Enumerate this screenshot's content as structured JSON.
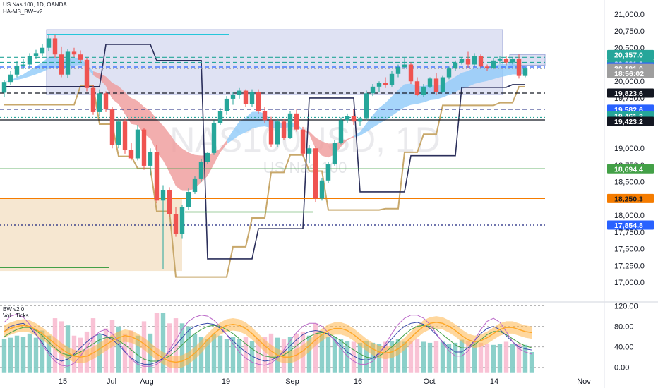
{
  "header": {
    "symbol_line": "US Nas 100, 1D, OANDA",
    "indicator_line": "HA-MS_BW+v2"
  },
  "sub_header": {
    "line1": "BW v2.0",
    "line2": "Vol · Ticks"
  },
  "watermark": {
    "big": "NAS100USD, 1D",
    "small": "US Nas 100"
  },
  "colors": {
    "up": "#26a69a",
    "down": "#ef5350",
    "ribbon_blue": "#90caf9",
    "ribbon_red": "#ef9a9a",
    "tan": "#c8a86b",
    "navy": "#2a2e5a",
    "box_blue": "#c5cae9",
    "box_tan": "#f3dfc2",
    "green_line": "#43a047",
    "orange_line": "#f57c00"
  },
  "chart_data": [
    {
      "type": "candlestick",
      "title": "US Nas 100, 1D, OANDA",
      "y_axis_ticks": [
        17000,
        17250,
        17500,
        17750,
        18000,
        18250,
        18500,
        18750,
        19000,
        19250,
        19500,
        19750,
        20000,
        20250,
        20500,
        20750,
        21000
      ],
      "y_tick_labels": [
        "17,000.0",
        "17,250.0",
        "17,500.0",
        "17,750.0",
        "18,000.0",
        "",
        "18,500.0",
        "18,750.0",
        "19,000.0",
        "",
        "",
        "19,750.0",
        "20,000.0",
        "",
        "20,500.0",
        "20,750.0",
        "21,000.0"
      ],
      "ylim": [
        16960,
        21150
      ],
      "x_tick_labels": [
        "15",
        "Jul",
        "Aug",
        "19",
        "Sep",
        "16",
        "Oct",
        "14",
        "Nov"
      ],
      "bars": [
        [
          19830,
          20020,
          19770,
          19990
        ],
        [
          19990,
          20150,
          19940,
          20100
        ],
        [
          20100,
          20300,
          20060,
          20230
        ],
        [
          20230,
          20330,
          20180,
          20250
        ],
        [
          20250,
          20420,
          20200,
          20380
        ],
        [
          20380,
          20470,
          20330,
          20420
        ],
        [
          20420,
          20560,
          20380,
          20500
        ],
        [
          20500,
          20690,
          20450,
          20640
        ],
        [
          20640,
          20700,
          20350,
          20400
        ],
        [
          20400,
          20520,
          20060,
          20100
        ],
        [
          20100,
          20480,
          20050,
          20440
        ],
        [
          20440,
          20500,
          20360,
          20400
        ],
        [
          20400,
          20460,
          20280,
          20320
        ],
        [
          20320,
          20350,
          19850,
          19900
        ],
        [
          19900,
          19940,
          19500,
          19540
        ],
        [
          19540,
          19880,
          19480,
          19820
        ],
        [
          19820,
          19850,
          19540,
          19580
        ],
        [
          19580,
          19620,
          19000,
          19050
        ],
        [
          19050,
          19450,
          19000,
          19400
        ],
        [
          19400,
          19450,
          18920,
          18980
        ],
        [
          18980,
          19080,
          18820,
          18850
        ],
        [
          18850,
          19350,
          18820,
          19280
        ],
        [
          19280,
          19300,
          18680,
          18740
        ],
        [
          18740,
          19000,
          18600,
          18940
        ],
        [
          18940,
          19050,
          18180,
          18220
        ],
        [
          18220,
          18450,
          17200,
          18380
        ],
        [
          18380,
          18420,
          17980,
          18020
        ],
        [
          18020,
          18120,
          17680,
          17720
        ],
        [
          17720,
          18160,
          17650,
          18120
        ],
        [
          18120,
          18400,
          18080,
          18350
        ],
        [
          18350,
          18580,
          18320,
          18540
        ],
        [
          18540,
          18840,
          18500,
          18800
        ],
        [
          18800,
          18950,
          18760,
          18930
        ],
        [
          18930,
          19420,
          18900,
          19380
        ],
        [
          19380,
          19600,
          19350,
          19560
        ],
        [
          19560,
          19780,
          19500,
          19740
        ],
        [
          19740,
          19840,
          19650,
          19800
        ],
        [
          19800,
          19900,
          19740,
          19860
        ],
        [
          19860,
          19880,
          19620,
          19660
        ],
        [
          19660,
          19880,
          19620,
          19840
        ],
        [
          19840,
          19880,
          19520,
          19560
        ],
        [
          19560,
          19620,
          19380,
          19420
        ],
        [
          19420,
          19470,
          19020,
          19060
        ],
        [
          19060,
          19450,
          19020,
          19400
        ],
        [
          19400,
          19440,
          19120,
          19160
        ],
        [
          19160,
          19560,
          19140,
          19520
        ],
        [
          19520,
          19580,
          19250,
          19280
        ],
        [
          19280,
          19320,
          18880,
          18920
        ],
        [
          18920,
          19050,
          18780,
          19000
        ],
        [
          19000,
          19030,
          18200,
          18250
        ],
        [
          18250,
          18560,
          18220,
          18520
        ],
        [
          18520,
          18800,
          18480,
          18760
        ],
        [
          18760,
          19120,
          18740,
          19080
        ],
        [
          19080,
          19460,
          19060,
          19420
        ],
        [
          19420,
          19520,
          19380,
          19480
        ],
        [
          19480,
          19580,
          19350,
          19400
        ],
        [
          19400,
          19460,
          19330,
          19450
        ],
        [
          19450,
          19860,
          19420,
          19820
        ],
        [
          19820,
          19960,
          19780,
          19920
        ],
        [
          19920,
          20000,
          19840,
          19980
        ],
        [
          19980,
          20060,
          19900,
          19950
        ],
        [
          19950,
          20150,
          19920,
          20110
        ],
        [
          20110,
          20250,
          20060,
          20210
        ],
        [
          20210,
          20350,
          20180,
          20250
        ],
        [
          20250,
          20280,
          19960,
          20000
        ],
        [
          20000,
          20060,
          19780,
          19800
        ],
        [
          19800,
          19960,
          19760,
          19920
        ],
        [
          19920,
          20060,
          19900,
          20040
        ],
        [
          20040,
          20120,
          19800,
          19840
        ],
        [
          19840,
          20080,
          19820,
          20060
        ],
        [
          20060,
          20220,
          20030,
          20190
        ],
        [
          20190,
          20310,
          20160,
          20280
        ],
        [
          20280,
          20360,
          20250,
          20330
        ],
        [
          20330,
          20440,
          20200,
          20250
        ],
        [
          20250,
          20420,
          20220,
          20380
        ],
        [
          20380,
          20400,
          20200,
          20220
        ],
        [
          20220,
          20250,
          20160,
          20200
        ],
        [
          20200,
          20350,
          20180,
          20310
        ],
        [
          20310,
          20380,
          20260,
          20340
        ],
        [
          20340,
          20380,
          20240,
          20280
        ],
        [
          20280,
          20360,
          20250,
          20330
        ],
        [
          20330,
          20400,
          20040,
          20080
        ],
        [
          20080,
          20220,
          20060,
          20191
        ]
      ],
      "price_badges": [
        {
          "value": "20,357.0",
          "bg": "#26a69a",
          "fg": "#ffffff"
        },
        {
          "value": "20,281.3",
          "bg": "#26a69a",
          "fg": "#ffffff"
        },
        {
          "value": "20,212.7",
          "bg": "#2962ff",
          "fg": "#ffffff"
        },
        {
          "value": "20,191.0",
          "bg": "#9e9e9e",
          "fg": "#ffffff"
        },
        {
          "value": "18:56:02",
          "bg": "#9e9e9e",
          "fg": "#ffffff"
        },
        {
          "value": "19,823.6",
          "bg": "#131722",
          "fg": "#ffffff"
        },
        {
          "value": "19,582.6",
          "bg": "#2962ff",
          "fg": "#ffffff"
        },
        {
          "value": "19,461.2",
          "bg": "#26a69a",
          "fg": "#ffffff"
        },
        {
          "value": "19,423.2",
          "bg": "#131722",
          "fg": "#ffffff"
        },
        {
          "value": "18,694.4",
          "bg": "#43a047",
          "fg": "#ffffff"
        },
        {
          "value": "18,250.3",
          "bg": "#f57c00",
          "fg": "#131722"
        },
        {
          "value": "17,854.8",
          "bg": "#2962ff",
          "fg": "#ffffff"
        }
      ],
      "levels": [
        {
          "value": 20357.0,
          "color": "#26a69a",
          "style": "dash"
        },
        {
          "value": 20281.3,
          "color": "#26a69a",
          "style": "dash"
        },
        {
          "value": 20212.7,
          "color": "#2962ff",
          "style": "dash"
        },
        {
          "value": 20191.0,
          "color": "#9e9e9e",
          "style": "dot"
        },
        {
          "value": 19823.6,
          "color": "#131722",
          "style": "dash"
        },
        {
          "value": 19582.6,
          "color": "#1a237e",
          "style": "dash"
        },
        {
          "value": 19461.2,
          "color": "#26a69a",
          "style": "dot"
        },
        {
          "value": 19423.2,
          "color": "#131722",
          "style": "solid"
        },
        {
          "value": 18694.4,
          "color": "#43a047",
          "style": "solid"
        },
        {
          "value": 18250.3,
          "color": "#f57c00",
          "style": "solid"
        },
        {
          "value": 17854.8,
          "color": "#1a237e",
          "style": "dot"
        }
      ]
    },
    {
      "type": "oscillator",
      "title": "BW v2.0",
      "y_axis_ticks": [
        0,
        40,
        80,
        120
      ],
      "y_tick_labels": [
        "0.00",
        "40.00",
        "80.00",
        "120.00"
      ],
      "ylim": [
        -10,
        125
      ],
      "volume": [
        55,
        58,
        62,
        60,
        66,
        58,
        72,
        62,
        96,
        90,
        82,
        62,
        58,
        70,
        96,
        66,
        76,
        92,
        80,
        66,
        72,
        62,
        90,
        66,
        106,
        106,
        86,
        96,
        86,
        80,
        66,
        60,
        56,
        66,
        62,
        56,
        60,
        56,
        60,
        52,
        56,
        60,
        66,
        58,
        56,
        60,
        66,
        70,
        62,
        86,
        66,
        60,
        60,
        56,
        52,
        50,
        48,
        52,
        48,
        46,
        50,
        52,
        56,
        50,
        52,
        56,
        50,
        48,
        52,
        50,
        46,
        48,
        54,
        52,
        50,
        48,
        46,
        44,
        46,
        50,
        46,
        46,
        44,
        30
      ],
      "osc_a": [
        70,
        80,
        84,
        86,
        78,
        64,
        48,
        30,
        18,
        12,
        16,
        26,
        38,
        50,
        60,
        66,
        62,
        54,
        44,
        30,
        18,
        10,
        6,
        6,
        10,
        18,
        30,
        44,
        58,
        72,
        80,
        84,
        86,
        84,
        76,
        64,
        52,
        40,
        30,
        22,
        16,
        12,
        14,
        20,
        30,
        42,
        54,
        64,
        70,
        72,
        70,
        64,
        54,
        42,
        30,
        22,
        16,
        14,
        18,
        28,
        42,
        56,
        70,
        80,
        86,
        88,
        84,
        76,
        64,
        50,
        38,
        30,
        30,
        38,
        52,
        66,
        76,
        80,
        74,
        62,
        50,
        40,
        36,
        34
      ],
      "osc_b": [
        60,
        68,
        74,
        78,
        78,
        72,
        62,
        50,
        38,
        28,
        24,
        24,
        30,
        38,
        46,
        54,
        58,
        58,
        52,
        44,
        34,
        24,
        16,
        12,
        12,
        16,
        22,
        32,
        44,
        56,
        66,
        74,
        80,
        82,
        80,
        74,
        66,
        56,
        46,
        36,
        28,
        22,
        20,
        20,
        24,
        32,
        42,
        52,
        60,
        66,
        68,
        66,
        60,
        52,
        42,
        34,
        26,
        20,
        18,
        22,
        30,
        40,
        52,
        64,
        74,
        80,
        82,
        80,
        74,
        64,
        54,
        44,
        38,
        38,
        44,
        54,
        64,
        70,
        70,
        64,
        56,
        48,
        42,
        38
      ],
      "osc_c": [
        88,
        100,
        104,
        98,
        84,
        66,
        44,
        26,
        12,
        4,
        2,
        8,
        22,
        40,
        58,
        70,
        74,
        66,
        50,
        32,
        16,
        6,
        2,
        2,
        6,
        16,
        34,
        54,
        74,
        90,
        98,
        102,
        100,
        92,
        80,
        64,
        46,
        30,
        18,
        10,
        6,
        4,
        8,
        18,
        34,
        52,
        68,
        80,
        86,
        86,
        80,
        68,
        52,
        36,
        22,
        12,
        6,
        6,
        12,
        26,
        46,
        66,
        84,
        96,
        102,
        102,
        96,
        84,
        66,
        48,
        32,
        22,
        22,
        32,
        52,
        74,
        90,
        96,
        88,
        70,
        50,
        36,
        30,
        26
      ],
      "band": [
        70,
        76,
        80,
        82,
        80,
        74,
        66,
        56,
        46,
        36,
        28,
        22,
        20,
        22,
        28,
        36,
        44,
        52,
        58,
        62,
        60,
        54,
        46,
        36,
        26,
        18,
        12,
        10,
        12,
        18,
        28,
        40,
        54,
        66,
        76,
        82,
        84,
        82,
        76,
        66,
        54,
        42,
        32,
        24,
        20,
        20,
        24,
        32,
        42,
        54,
        64,
        72,
        76,
        76,
        72,
        64,
        54,
        44,
        36,
        30,
        28,
        30,
        36,
        46,
        58,
        70,
        80,
        86,
        88,
        86,
        80,
        72,
        62,
        54,
        50,
        52,
        58,
        66,
        74,
        78,
        78,
        74,
        70,
        68
      ]
    }
  ]
}
